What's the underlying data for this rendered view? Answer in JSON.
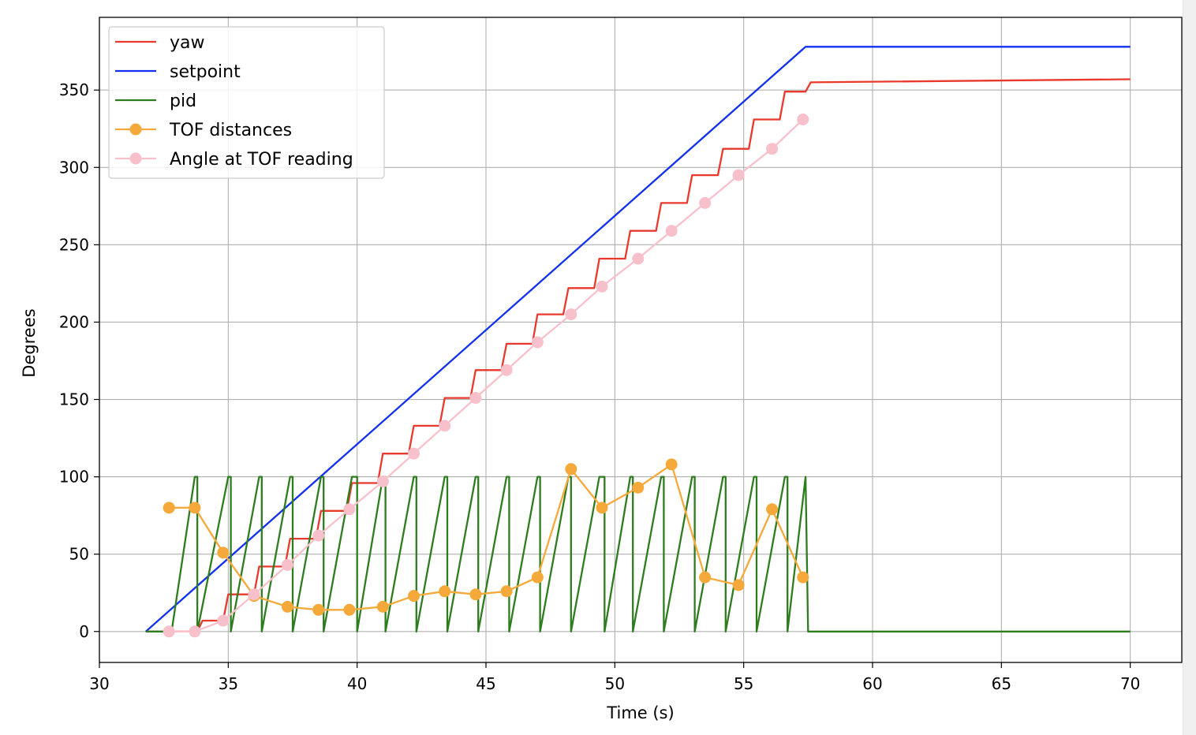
{
  "chart_data": {
    "type": "line",
    "title": "",
    "xlabel": "Time (s)",
    "ylabel": "Degrees",
    "xlim": [
      30,
      72
    ],
    "ylim": [
      -20,
      397
    ],
    "xticks": [
      30,
      35,
      40,
      45,
      50,
      55,
      60,
      65,
      70
    ],
    "yticks": [
      0,
      50,
      100,
      150,
      200,
      250,
      300,
      350
    ],
    "grid": true,
    "legend_position": "upper left",
    "series": [
      {
        "name": "yaw",
        "color": "#e8392c",
        "marker": "none",
        "x": [
          31.8,
          33.8,
          34.0,
          34.8,
          35.0,
          36.0,
          36.2,
          37.2,
          37.4,
          38.4,
          38.6,
          39.6,
          39.8,
          40.8,
          41.0,
          42.0,
          42.2,
          43.2,
          43.4,
          44.4,
          44.6,
          45.6,
          45.8,
          46.8,
          47.0,
          48.0,
          48.2,
          49.2,
          49.4,
          50.4,
          50.6,
          51.6,
          51.8,
          52.8,
          53.0,
          54.0,
          54.2,
          55.2,
          55.4,
          56.4,
          56.6,
          57.4,
          57.6,
          70.0
        ],
        "y": [
          0,
          0,
          7,
          7,
          24,
          24,
          42,
          42,
          60,
          60,
          78,
          78,
          96,
          96,
          115,
          115,
          133,
          133,
          151,
          151,
          169,
          169,
          186,
          186,
          205,
          205,
          222,
          222,
          241,
          241,
          259,
          259,
          277,
          277,
          295,
          295,
          312,
          312,
          331,
          331,
          349,
          349,
          355,
          357
        ]
      },
      {
        "name": "setpoint",
        "color": "#1130f0",
        "marker": "none",
        "x": [
          31.8,
          57.4,
          70.0
        ],
        "y": [
          0,
          378,
          378
        ]
      },
      {
        "name": "pid",
        "color": "#2d7d1f",
        "marker": "none",
        "x": [
          31.8,
          32.8,
          33.7,
          33.8,
          33.8,
          35.0,
          35.1,
          35.1,
          36.2,
          36.3,
          36.3,
          37.4,
          37.5,
          37.5,
          38.6,
          38.7,
          38.7,
          39.8,
          40.0,
          40.0,
          41.0,
          41.1,
          41.1,
          42.2,
          42.3,
          42.3,
          43.4,
          43.5,
          43.5,
          44.6,
          44.7,
          44.7,
          45.8,
          45.9,
          45.9,
          47.0,
          47.1,
          47.1,
          48.2,
          48.3,
          48.3,
          49.4,
          49.6,
          49.6,
          50.6,
          50.7,
          50.7,
          51.8,
          51.9,
          51.9,
          53.0,
          53.1,
          53.1,
          54.2,
          54.3,
          54.3,
          55.4,
          55.5,
          55.5,
          56.6,
          56.7,
          56.7,
          57.4,
          57.5,
          70.0
        ],
        "y": [
          0,
          0,
          100,
          100,
          0,
          100,
          100,
          0,
          100,
          100,
          0,
          100,
          100,
          0,
          100,
          100,
          0,
          100,
          100,
          0,
          100,
          100,
          0,
          100,
          100,
          0,
          100,
          100,
          0,
          100,
          100,
          0,
          100,
          100,
          0,
          100,
          100,
          0,
          100,
          100,
          0,
          100,
          100,
          0,
          100,
          100,
          0,
          100,
          100,
          0,
          100,
          100,
          0,
          100,
          100,
          0,
          100,
          100,
          0,
          100,
          100,
          0,
          100,
          0,
          0
        ]
      },
      {
        "name": "TOF distances",
        "color": "#f5a93a",
        "marker": "circle",
        "x": [
          32.7,
          33.7,
          34.8,
          36.0,
          37.3,
          38.5,
          39.7,
          41.0,
          42.2,
          43.4,
          44.6,
          45.8,
          47.0,
          48.3,
          49.5,
          50.9,
          52.2,
          53.5,
          54.8,
          56.1,
          57.3
        ],
        "y": [
          80,
          80,
          51,
          23,
          16,
          14,
          14,
          16,
          23,
          26,
          24,
          26,
          35,
          105,
          80,
          93,
          108,
          35,
          30,
          79,
          35
        ]
      },
      {
        "name": "Angle at TOF reading",
        "color": "#f7c0cb",
        "marker": "circle",
        "x": [
          32.7,
          33.7,
          34.8,
          36.0,
          37.3,
          38.5,
          39.7,
          41.0,
          42.2,
          43.4,
          44.6,
          45.8,
          47.0,
          48.3,
          49.5,
          50.9,
          52.2,
          53.5,
          54.8,
          56.1,
          57.3
        ],
        "y": [
          0,
          0,
          7,
          24,
          43,
          62,
          79,
          97,
          115,
          133,
          151,
          169,
          187,
          205,
          223,
          241,
          259,
          277,
          295,
          312,
          331
        ]
      }
    ]
  }
}
